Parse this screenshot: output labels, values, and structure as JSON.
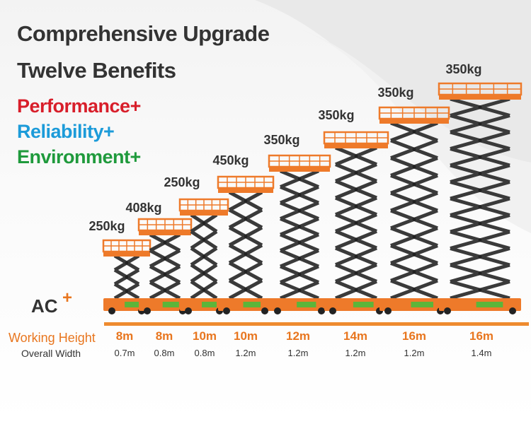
{
  "headline": {
    "line1": "Comprehensive Upgrade",
    "line2": "Twelve Benefits"
  },
  "benefits": [
    {
      "label": "Performance+",
      "color": "#d81e2a"
    },
    {
      "label": "Reliability+",
      "color": "#1c9bd9"
    },
    {
      "label": "Environment+",
      "color": "#1f9a3c"
    }
  ],
  "ac_badge": {
    "text": "AC",
    "plus": "+"
  },
  "row_labels": {
    "working_height": "Working Height",
    "overall_width": "Overall Width"
  },
  "models": [
    {
      "capacity": "250kg",
      "working_height": "8m",
      "overall_width": "0.7m"
    },
    {
      "capacity": "408kg",
      "working_height": "8m",
      "overall_width": "0.8m"
    },
    {
      "capacity": "250kg",
      "working_height": "10m",
      "overall_width": "0.8m"
    },
    {
      "capacity": "450kg",
      "working_height": "10m",
      "overall_width": "1.2m"
    },
    {
      "capacity": "350kg",
      "working_height": "12m",
      "overall_width": "1.2m"
    },
    {
      "capacity": "350kg",
      "working_height": "14m",
      "overall_width": "1.2m"
    },
    {
      "capacity": "350kg",
      "working_height": "16m",
      "overall_width": "1.2m"
    },
    {
      "capacity": "350kg",
      "working_height": "16m",
      "overall_width": "1.4m"
    }
  ],
  "colors": {
    "accent_orange": "#ee7a2a",
    "scissor_dark": "#3a3a3a",
    "base_green": "#5cb53a",
    "title_gray": "#333333"
  }
}
